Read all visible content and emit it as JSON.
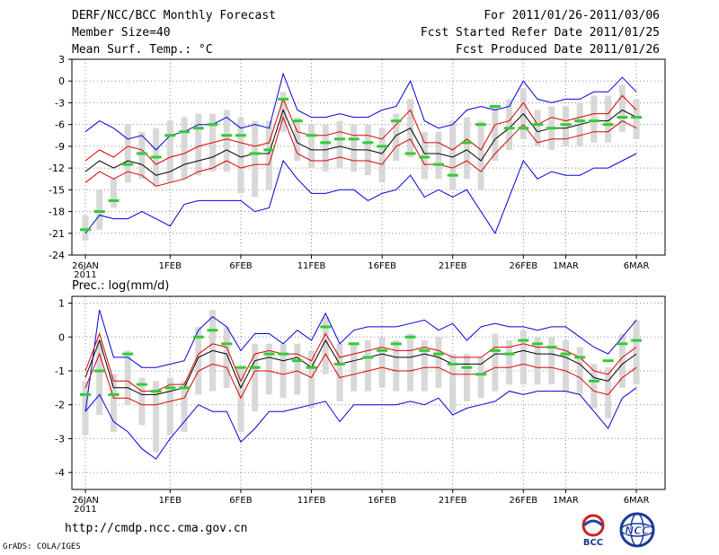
{
  "header": {
    "title": "DERF/NCC/BCC Monthly Forecast",
    "member_size": "Member Size=40",
    "variable": "Mean Surf. Temp.: °C",
    "period": "For 2011/01/26-2011/03/06",
    "fcst_started": "Fcst Started Refer Date 2011/01/25",
    "fcst_produced": "Fcst Produced Date 2011/01/26"
  },
  "footer": {
    "url": "http://cmdp.ncc.cma.gov.cn",
    "grads": "GrADS: COLA/IGES",
    "logo_bcc": "BCC",
    "logo_ncc": "NCC"
  },
  "colors": {
    "max_min": "#0000dd",
    "spread": "#dd0000",
    "mean": "#000000",
    "obs": "#33cc33",
    "box": "#d8d8d8",
    "grid": "#888888"
  },
  "chart_data": [
    {
      "type": "line",
      "title": "Mean Surf. Temp.: °C",
      "x_tick_labels": [
        "26JAN",
        "1FEB",
        "6FEB",
        "11FEB",
        "16FEB",
        "21FEB",
        "26FEB",
        "1MAR",
        "6MAR"
      ],
      "x_tick_days": [
        0,
        6,
        11,
        16,
        21,
        26,
        31,
        34,
        39
      ],
      "year_label": "2011",
      "ylim": [
        -24,
        3
      ],
      "yticks": [
        3,
        0,
        -3,
        -6,
        -9,
        -12,
        -15,
        -18,
        -21,
        -24
      ],
      "series": [
        {
          "name": "max",
          "values": [
            -7.0,
            -5.5,
            -6.5,
            -8.0,
            -7.5,
            -9.5,
            -7.5,
            -7.0,
            -6.0,
            -6.0,
            -5.0,
            -6.5,
            -6.0,
            -6.5,
            1.0,
            -4.0,
            -5.0,
            -5.0,
            -4.5,
            -5.0,
            -5.0,
            -4.0,
            -3.5,
            0.0,
            -5.5,
            -6.5,
            -6.0,
            -4.0,
            -3.5,
            -4.0,
            -3.5,
            0.0,
            -2.5,
            -3.0,
            -2.5,
            -2.5,
            -1.5,
            -1.5,
            0.5,
            -1.5
          ]
        },
        {
          "name": "upper",
          "values": [
            -11.0,
            -9.5,
            -10.5,
            -9.0,
            -9.5,
            -11.5,
            -10.5,
            -10.0,
            -9.0,
            -8.5,
            -8.0,
            -8.5,
            -9.0,
            -8.5,
            -2.5,
            -7.0,
            -7.5,
            -7.5,
            -7.0,
            -7.5,
            -7.5,
            -8.0,
            -6.0,
            -4.0,
            -8.5,
            -8.5,
            -9.5,
            -8.0,
            -9.5,
            -6.0,
            -5.5,
            -3.0,
            -6.0,
            -5.0,
            -5.5,
            -5.0,
            -4.5,
            -4.5,
            -2.0,
            -4.0
          ]
        },
        {
          "name": "mean",
          "values": [
            -12.5,
            -11.0,
            -12.0,
            -11.0,
            -11.5,
            -13.0,
            -12.5,
            -11.5,
            -11.0,
            -10.5,
            -9.5,
            -10.5,
            -10.0,
            -10.0,
            -4.0,
            -8.5,
            -9.5,
            -9.5,
            -9.0,
            -9.5,
            -9.5,
            -10.0,
            -7.5,
            -6.5,
            -10.0,
            -10.0,
            -10.5,
            -9.5,
            -11.0,
            -8.0,
            -6.5,
            -4.5,
            -7.0,
            -6.5,
            -6.5,
            -6.0,
            -5.5,
            -5.5,
            -4.0,
            -5.0
          ]
        },
        {
          "name": "lower",
          "values": [
            -14.0,
            -12.5,
            -13.5,
            -12.5,
            -13.0,
            -14.5,
            -14.0,
            -13.5,
            -12.5,
            -12.0,
            -11.0,
            -12.0,
            -11.5,
            -11.5,
            -5.0,
            -10.0,
            -11.0,
            -11.0,
            -10.5,
            -11.0,
            -11.0,
            -11.5,
            -9.0,
            -8.0,
            -11.5,
            -11.5,
            -12.0,
            -11.0,
            -12.5,
            -10.0,
            -8.0,
            -6.0,
            -8.5,
            -8.0,
            -8.0,
            -7.5,
            -7.0,
            -7.0,
            -5.5,
            -6.5
          ]
        },
        {
          "name": "min",
          "values": [
            -21.0,
            -18.5,
            -19.0,
            -19.0,
            -18.0,
            -19.0,
            -20.0,
            -17.0,
            -16.5,
            -16.5,
            -16.5,
            -16.5,
            -18.0,
            -17.5,
            -11.0,
            -13.5,
            -15.5,
            -15.5,
            -15.0,
            -15.0,
            -16.5,
            -15.5,
            -15.0,
            -13.0,
            -16.0,
            -15.0,
            -16.0,
            -15.0,
            -18.0,
            -21.0,
            -16.0,
            -11.0,
            -13.5,
            -12.5,
            -13.0,
            -13.0,
            -12.0,
            -12.0,
            -11.0,
            -10.0
          ]
        },
        {
          "name": "obs",
          "values": [
            -20.5,
            -18.0,
            -16.5,
            -11.5,
            -10.0,
            -10.5,
            -7.5,
            -7.0,
            -6.5,
            -6.0,
            -7.5,
            -7.5,
            -10.0,
            -9.5,
            -2.5,
            -5.5,
            -7.5,
            -8.5,
            -8.0,
            -8.0,
            -8.5,
            -9.0,
            -5.5,
            -10.0,
            -10.5,
            -11.5,
            -13.0,
            -8.5,
            -6.0,
            -3.5,
            -6.5,
            -6.5,
            -6.0,
            -6.5,
            -6.0,
            -5.5,
            -5.5,
            -6.0,
            -5.0,
            -5.0
          ]
        },
        {
          "name": "box_top",
          "values": [
            -18.5,
            -15.0,
            -13.5,
            -6.0,
            -7.0,
            -6.5,
            -5.5,
            -5.0,
            -4.5,
            -4.5,
            -4.0,
            -5.0,
            -5.5,
            -5.5,
            -1.5,
            -5.0,
            -6.0,
            -6.0,
            -5.5,
            -6.0,
            -6.0,
            -6.5,
            -4.5,
            -2.5,
            -7.0,
            -7.0,
            -5.5,
            -5.0,
            -5.5,
            -3.5,
            -2.5,
            -1.0,
            -4.0,
            -3.5,
            -3.5,
            -3.0,
            -2.0,
            -2.0,
            -0.5,
            -2.5
          ]
        },
        {
          "name": "box_bottom",
          "values": [
            -22.0,
            -20.5,
            -17.5,
            -14.0,
            -13.5,
            -14.5,
            -14.0,
            -13.5,
            -13.0,
            -12.5,
            -12.5,
            -15.5,
            -16.0,
            -15.0,
            -7.0,
            -11.0,
            -12.0,
            -12.5,
            -12.0,
            -12.5,
            -13.0,
            -14.0,
            -11.0,
            -10.5,
            -13.5,
            -13.5,
            -15.0,
            -13.5,
            -15.0,
            -11.0,
            -9.5,
            -8.0,
            -9.0,
            -9.5,
            -9.0,
            -9.0,
            -8.5,
            -8.5,
            -7.0,
            -8.0
          ]
        }
      ]
    },
    {
      "type": "line",
      "title": "Prec.: log(mm/d)",
      "x_tick_labels": [
        "26JAN",
        "1FEB",
        "6FEB",
        "11FEB",
        "16FEB",
        "21FEB",
        "26FEB",
        "1MAR",
        "6MAR"
      ],
      "x_tick_days": [
        0,
        6,
        11,
        16,
        21,
        26,
        31,
        34,
        39
      ],
      "year_label": "2011",
      "ylim": [
        -4.5,
        1.2
      ],
      "yticks": [
        1,
        0,
        -1,
        -2,
        -3,
        -4
      ],
      "series": [
        {
          "name": "max",
          "values": [
            -2.2,
            0.8,
            -0.6,
            -0.6,
            -0.9,
            -0.9,
            -0.8,
            -0.7,
            0.2,
            0.6,
            0.3,
            -0.4,
            0.1,
            0.1,
            -0.2,
            0.2,
            -0.1,
            0.7,
            -0.2,
            0.2,
            0.3,
            0.3,
            0.3,
            0.4,
            0.5,
            0.2,
            0.4,
            -0.1,
            0.3,
            0.4,
            0.3,
            0.3,
            0.2,
            0.3,
            0.3,
            0.0,
            -0.3,
            -0.5,
            0.0,
            0.5
          ]
        },
        {
          "name": "upper",
          "values": [
            -1.0,
            0.1,
            -1.3,
            -1.3,
            -1.6,
            -1.6,
            -1.4,
            -1.4,
            -0.5,
            -0.2,
            -0.3,
            -1.3,
            -0.5,
            -0.4,
            -0.5,
            -0.5,
            -0.7,
            0.1,
            -0.6,
            -0.5,
            -0.4,
            -0.3,
            -0.4,
            -0.4,
            -0.3,
            -0.4,
            -0.6,
            -0.6,
            -0.6,
            -0.3,
            -0.3,
            -0.2,
            -0.3,
            -0.3,
            -0.4,
            -0.6,
            -1.0,
            -1.1,
            -0.6,
            -0.3
          ]
        },
        {
          "name": "mean",
          "values": [
            -1.2,
            -0.1,
            -1.5,
            -1.5,
            -1.7,
            -1.7,
            -1.6,
            -1.5,
            -0.6,
            -0.4,
            -0.5,
            -1.5,
            -0.7,
            -0.6,
            -0.7,
            -0.6,
            -0.9,
            -0.1,
            -0.8,
            -0.7,
            -0.6,
            -0.5,
            -0.6,
            -0.6,
            -0.5,
            -0.6,
            -0.8,
            -0.8,
            -0.8,
            -0.5,
            -0.5,
            -0.4,
            -0.5,
            -0.5,
            -0.6,
            -0.8,
            -1.2,
            -1.3,
            -0.8,
            -0.5
          ]
        },
        {
          "name": "lower",
          "values": [
            -1.5,
            -0.5,
            -1.8,
            -1.8,
            -2.0,
            -2.0,
            -1.9,
            -1.8,
            -1.0,
            -0.8,
            -0.9,
            -1.8,
            -1.0,
            -1.0,
            -1.1,
            -1.0,
            -1.2,
            -0.5,
            -1.2,
            -1.1,
            -1.0,
            -0.9,
            -1.0,
            -1.0,
            -0.9,
            -0.9,
            -1.1,
            -1.1,
            -1.1,
            -0.9,
            -0.9,
            -0.8,
            -0.9,
            -0.9,
            -1.0,
            -1.2,
            -1.6,
            -1.7,
            -1.2,
            -0.9
          ]
        },
        {
          "name": "min",
          "values": [
            -2.2,
            -1.7,
            -2.5,
            -2.8,
            -3.3,
            -3.6,
            -3.0,
            -2.5,
            -2.0,
            -2.2,
            -2.2,
            -3.1,
            -2.7,
            -2.2,
            -2.2,
            -2.1,
            -2.0,
            -1.9,
            -2.5,
            -2.0,
            -2.0,
            -2.0,
            -2.0,
            -1.9,
            -2.0,
            -1.8,
            -2.3,
            -2.1,
            -2.0,
            -1.9,
            -1.6,
            -1.7,
            -1.6,
            -1.6,
            -1.6,
            -1.7,
            -2.2,
            -2.7,
            -1.8,
            -1.5
          ]
        },
        {
          "name": "obs",
          "values": [
            -1.7,
            -1.0,
            -1.7,
            -0.5,
            -1.4,
            -1.6,
            -1.5,
            -1.5,
            0.0,
            0.2,
            -0.2,
            -0.9,
            -0.9,
            -0.5,
            -0.5,
            -0.7,
            -0.9,
            0.3,
            -0.8,
            -0.2,
            -0.6,
            -0.4,
            -0.2,
            0.0,
            -0.4,
            -0.5,
            -0.8,
            -0.9,
            -1.1,
            -0.4,
            -0.5,
            -0.1,
            -0.2,
            -0.3,
            -0.5,
            -0.6,
            -1.3,
            -0.7,
            -0.2,
            -0.1
          ]
        },
        {
          "name": "box_top",
          "values": [
            -1.3,
            -0.1,
            -1.1,
            -0.4,
            -1.2,
            -1.3,
            -1.2,
            -1.3,
            0.3,
            0.8,
            0.3,
            -0.9,
            -0.2,
            -0.2,
            -0.2,
            -0.2,
            -0.4,
            0.6,
            -0.2,
            -0.2,
            -0.1,
            0.0,
            -0.1,
            0.1,
            -0.1,
            0.0,
            -0.5,
            -0.5,
            -0.6,
            0.1,
            -0.1,
            0.2,
            0.0,
            0.0,
            -0.1,
            -0.3,
            -0.8,
            -0.9,
            0.1,
            0.5
          ]
        },
        {
          "name": "box_bottom",
          "values": [
            -2.9,
            -2.3,
            -2.8,
            -2.0,
            -2.6,
            -3.4,
            -2.9,
            -2.8,
            -1.7,
            -1.6,
            -1.5,
            -2.8,
            -2.2,
            -1.7,
            -1.8,
            -1.7,
            -2.1,
            -1.1,
            -1.9,
            -1.6,
            -1.6,
            -1.5,
            -1.6,
            -1.6,
            -1.6,
            -1.5,
            -2.2,
            -1.9,
            -1.8,
            -1.6,
            -1.4,
            -1.4,
            -1.4,
            -1.4,
            -1.6,
            -1.7,
            -2.1,
            -2.4,
            -1.5,
            -1.4
          ]
        }
      ]
    }
  ]
}
